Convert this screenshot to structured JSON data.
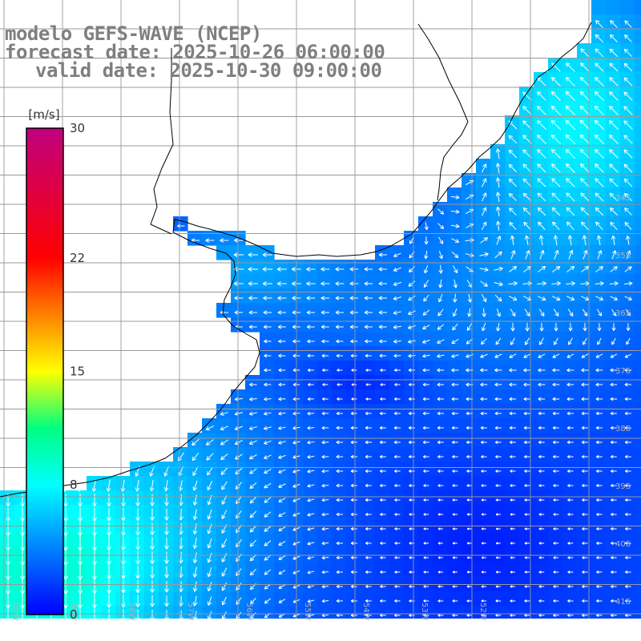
{
  "title": {
    "line1": "modelo GEFS-WAVE (NCEP)",
    "line2": "forecast date: 2025-10-26 06:00:00",
    "line3": "valid date: 2025-10-30 09:00:00"
  },
  "colorbar": {
    "unit": "[m/s]",
    "ticks": [
      {
        "value": 30,
        "label": "30"
      },
      {
        "value": 22,
        "label": "22"
      },
      {
        "value": 15,
        "label": "15"
      },
      {
        "value": 8,
        "label": "8"
      },
      {
        "value": 0,
        "label": "0"
      }
    ],
    "range": [
      0,
      30
    ],
    "stops": [
      {
        "value": 0,
        "color": "#0000ff"
      },
      {
        "value": 4,
        "color": "#0080ff"
      },
      {
        "value": 8,
        "color": "#00ffff"
      },
      {
        "value": 11.5,
        "color": "#00ff80"
      },
      {
        "value": 15,
        "color": "#ffff00"
      },
      {
        "value": 18.5,
        "color": "#ff8000"
      },
      {
        "value": 22,
        "color": "#ff0000"
      },
      {
        "value": 30,
        "color": "#c0007f"
      }
    ]
  },
  "grid_labels": {
    "lat": [
      "34S",
      "35S",
      "36S",
      "37S",
      "38S",
      "39S",
      "40S",
      "41S"
    ],
    "lon": [
      "60W",
      "59W",
      "58W",
      "57W",
      "56W",
      "55W",
      "54W",
      "53W",
      "52W"
    ]
  },
  "colors": {
    "land": "#ffffff",
    "coastline": "#000000",
    "grid": "#999999",
    "arrows": "#ffffff",
    "title": "#7f7f7f"
  },
  "chart_data": {
    "type": "heatmap",
    "variable": "wind speed",
    "unit": "[m/s]",
    "range": [
      0,
      30
    ],
    "speed_regions": [
      {
        "area": "Uruguay coast (north-east)",
        "speed_ms": 7.5
      },
      {
        "area": "Rio de la Plata estuary",
        "speed_ms": 5
      },
      {
        "area": "offshore south-east",
        "speed_ms": 2.5
      },
      {
        "area": "Argentine coast (south-west)",
        "speed_ms": 9
      }
    ],
    "arrow_directions": [
      {
        "area": "north-east",
        "toward": "north-west"
      },
      {
        "area": "Rio de la Plata",
        "toward": "west"
      },
      {
        "area": "south-west",
        "toward": "south"
      }
    ]
  }
}
